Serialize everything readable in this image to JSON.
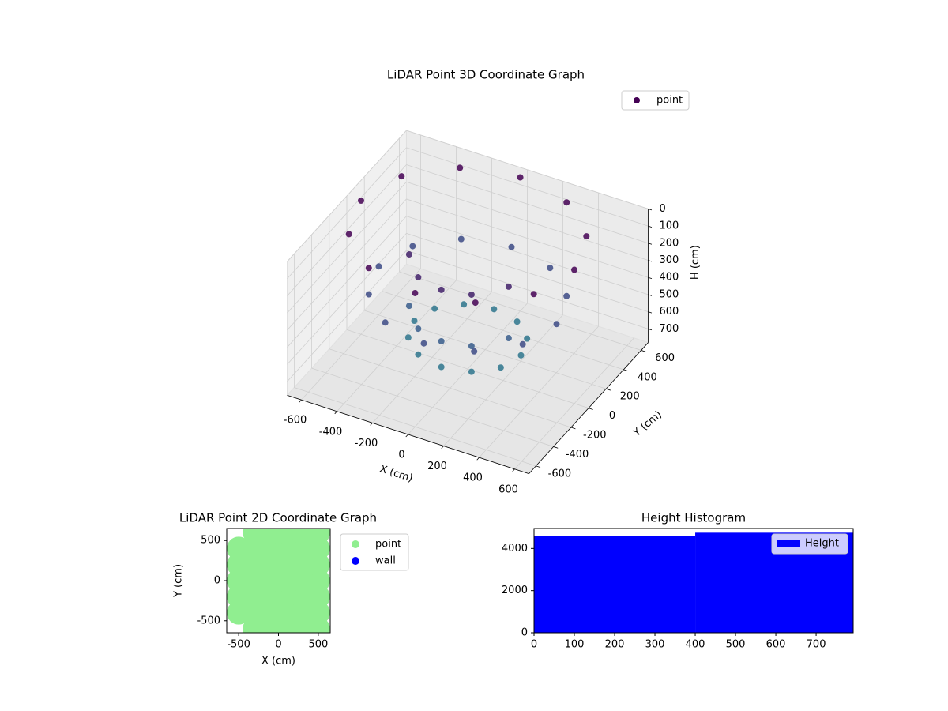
{
  "chart_data": [
    {
      "type": "scatter3d",
      "title": "LiDAR Point 3D Coordinate Graph",
      "xlabel": "X (cm)",
      "ylabel": "Y (cm)",
      "zlabel": "H (cm)",
      "xlim": [
        -680,
        680
      ],
      "ylim": [
        -680,
        680
      ],
      "zlim": [
        0,
        780
      ],
      "z_inverted": true,
      "xticks": [
        -600,
        -400,
        -200,
        0,
        200,
        400,
        600
      ],
      "yticks": [
        -600,
        -400,
        -200,
        0,
        200,
        400,
        600
      ],
      "zticks": [
        0,
        100,
        200,
        300,
        400,
        500,
        600,
        700
      ],
      "color_stops": [
        "#440154",
        "#3b528b",
        "#21918c"
      ],
      "series": [
        {
          "name": "point",
          "color": "#440154",
          "x": [
            600,
            520,
            300,
            0,
            -300,
            -520,
            -600,
            -520,
            -300,
            0,
            300,
            520,
            500,
            433,
            250,
            0,
            -250,
            -433,
            -500,
            -433,
            -250,
            0,
            250,
            433,
            300,
            260,
            150,
            0,
            -150,
            -260,
            -300,
            -260,
            -150,
            0,
            150,
            260,
            -280,
            -150,
            0,
            150,
            280,
            -280,
            -150,
            0,
            150,
            280
          ],
          "y": [
            0,
            300,
            520,
            600,
            520,
            300,
            0,
            -300,
            -520,
            -600,
            -520,
            -300,
            0,
            250,
            433,
            500,
            433,
            250,
            0,
            -250,
            -433,
            -500,
            -433,
            -250,
            0,
            150,
            260,
            300,
            260,
            150,
            0,
            -150,
            -260,
            -300,
            -260,
            -150,
            -100,
            -260,
            -300,
            -260,
            -100,
            -100,
            -260,
            -300,
            -260,
            -100
          ],
          "z": [
            0,
            0,
            0,
            0,
            0,
            0,
            0,
            0,
            0,
            0,
            0,
            0,
            350,
            350,
            350,
            350,
            350,
            350,
            350,
            350,
            350,
            350,
            350,
            350,
            600,
            600,
            600,
            600,
            600,
            600,
            600,
            600,
            600,
            600,
            600,
            600,
            150,
            150,
            150,
            150,
            150,
            450,
            450,
            450,
            450,
            450
          ]
        }
      ]
    },
    {
      "type": "scatter",
      "title": "LiDAR Point 2D Coordinate Graph",
      "xlabel": "X (cm)",
      "ylabel": "Y (cm)",
      "xlim": [
        -650,
        650
      ],
      "ylim": [
        -650,
        650
      ],
      "xticks": [
        -500,
        0,
        500
      ],
      "yticks": [
        -500,
        0,
        500
      ],
      "series": [
        {
          "name": "point",
          "color": "#90ee90",
          "x": [
            -500,
            -500,
            -500,
            -500,
            -500,
            -300,
            -300,
            -300,
            -300,
            -300,
            -300,
            -300,
            -100,
            -100,
            -100,
            -100,
            -100,
            -100,
            -100,
            100,
            100,
            100,
            100,
            100,
            100,
            100,
            300,
            300,
            300,
            300,
            300,
            300,
            300,
            500,
            500,
            500,
            500,
            500,
            500,
            500
          ],
          "y": [
            -400,
            -200,
            0,
            200,
            400,
            -600,
            -400,
            -200,
            0,
            200,
            400,
            600,
            -600,
            -400,
            -200,
            0,
            200,
            400,
            600,
            -600,
            -400,
            -200,
            0,
            200,
            400,
            600,
            -600,
            -400,
            -200,
            0,
            200,
            400,
            600,
            -600,
            -400,
            -200,
            0,
            200,
            400,
            600
          ]
        },
        {
          "name": "wall",
          "color": "#0000ff",
          "x": [],
          "y": []
        }
      ]
    },
    {
      "type": "histogram",
      "title": "Height Histogram",
      "bins": [
        0,
        400,
        792
      ],
      "xlim": [
        0,
        792
      ],
      "ylim": [
        0,
        4950
      ],
      "xticks": [
        0,
        100,
        200,
        300,
        400,
        500,
        600,
        700
      ],
      "yticks": [
        0,
        2000,
        4000
      ],
      "series": [
        {
          "name": "Height",
          "color": "#0000ff",
          "values": [
            4600,
            4750
          ]
        }
      ]
    }
  ]
}
